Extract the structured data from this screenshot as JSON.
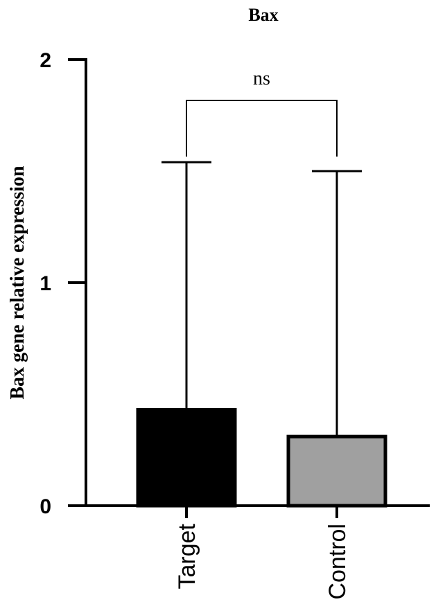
{
  "chart_data": {
    "type": "bar",
    "title": "Bax",
    "y_label": "Bax gene relative expression",
    "categories": [
      "Target",
      "Control"
    ],
    "values": [
      0.43,
      0.31
    ],
    "errors": [
      1.11,
      1.19
    ],
    "colors": [
      "#000000",
      "#a0a0a0"
    ],
    "ylim": [
      0,
      2
    ],
    "yticks": [
      0,
      1,
      2
    ],
    "annotation": "ns"
  }
}
